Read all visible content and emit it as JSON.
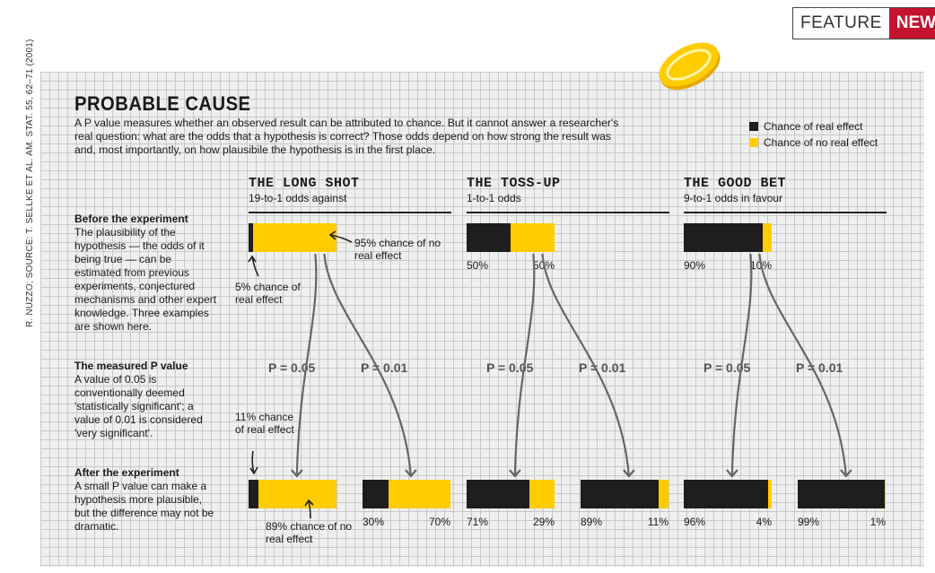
{
  "badge": {
    "feature": "FEATURE",
    "news": "NEWS"
  },
  "side_credit": "R. NUZZO; SOURCE: T. SELLKE ET AL. AM. STAT. 55, 62–71 (2001)",
  "title": "PROBABLE CAUSE",
  "intro": "A P value measures whether an observed result can be attributed to chance. But it cannot answer a researcher's real question: what are the odds that a hypothesis is correct? Those odds depend on how strong the result was and, most importantly, on how plausibile the hypothesis is in the first place.",
  "legend": {
    "real": "Chance of real effect",
    "no_real": "Chance of no real effect"
  },
  "colors": {
    "real": "#1e1e1e",
    "no_real": "#ffcc00",
    "news": "#c4122f"
  },
  "left_labels": {
    "before": {
      "title": "Before the experiment",
      "text": "The plausibility of the hypothesis — the odds of it being true — can be estimated from previous experiments, conjectured mechanisms and other expert knowledge. Three examples are shown here."
    },
    "pvalue": {
      "title": "The measured P value",
      "text": "A value of 0.05 is conventionally deemed 'statistically significant'; a value of 0.01 is considered 'very significant'."
    },
    "after": {
      "title": "After the experiment",
      "text": "A small P value can make a hypothesis more plausible, but the difference may not be dramatic."
    }
  },
  "annotations": {
    "ls_no_real": "95% chance of no real effect",
    "ls_real": "5% chance of real effect",
    "ls_after_real": "11% chance of real effect",
    "ls_after_no_real": "89% chance of no real effect"
  },
  "chart_data": {
    "type": "bar",
    "series_names": [
      "Chance of real effect",
      "Chance of no real effect"
    ],
    "groups": [
      {
        "title": "THE LONG SHOT",
        "subtitle": "19-to-1 odds against",
        "before": {
          "real": 5,
          "no_real": 95
        },
        "after": [
          {
            "p": "P = 0.05",
            "real": 11,
            "no_real": 89
          },
          {
            "p": "P = 0.01",
            "real": 30,
            "no_real": 70,
            "label_real": "30%",
            "label_no_real": "70%"
          }
        ]
      },
      {
        "title": "THE TOSS-UP",
        "subtitle": "1-to-1 odds",
        "before": {
          "real": 50,
          "no_real": 50,
          "label_real": "50%",
          "label_no_real": "50%"
        },
        "after": [
          {
            "p": "P = 0.05",
            "real": 71,
            "no_real": 29,
            "label_real": "71%",
            "label_no_real": "29%"
          },
          {
            "p": "P = 0.01",
            "real": 89,
            "no_real": 11,
            "label_real": "89%",
            "label_no_real": "11%"
          }
        ]
      },
      {
        "title": "THE GOOD BET",
        "subtitle": "9-to-1 odds in favour",
        "before": {
          "real": 90,
          "no_real": 10,
          "label_real": "90%",
          "label_no_real": "10%"
        },
        "after": [
          {
            "p": "P = 0.05",
            "real": 96,
            "no_real": 4,
            "label_real": "96%",
            "label_no_real": "4%"
          },
          {
            "p": "P = 0.01",
            "real": 99,
            "no_real": 1,
            "label_real": "99%",
            "label_no_real": "1%"
          }
        ]
      }
    ]
  }
}
